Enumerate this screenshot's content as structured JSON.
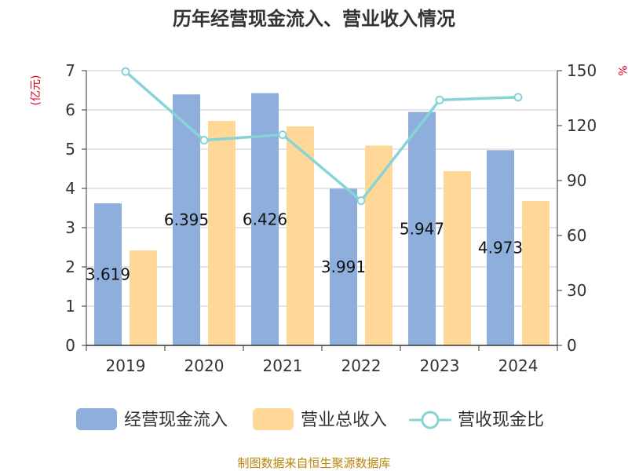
{
  "chart_data": {
    "type": "bar",
    "title": "历年经营现金流入、营业收入情况",
    "categories": [
      "2019",
      "2020",
      "2021",
      "2022",
      "2023",
      "2024"
    ],
    "series": [
      {
        "name": "经营现金流入",
        "kind": "bar",
        "axis": "left",
        "color": "#8eaedb",
        "values": [
          3.619,
          6.395,
          6.426,
          3.991,
          5.947,
          4.973
        ]
      },
      {
        "name": "营业总收入",
        "kind": "bar",
        "axis": "left",
        "color": "#ffd796",
        "values": [
          2.42,
          5.72,
          5.58,
          5.09,
          4.44,
          3.68
        ]
      },
      {
        "name": "营收现金比",
        "kind": "line",
        "axis": "right",
        "color": "#88d3d6",
        "values": [
          149.5,
          112,
          115,
          79,
          134,
          135.5
        ]
      }
    ],
    "data_labels": [
      "3.619",
      "6.395",
      "6.426",
      "3.991",
      "5.947",
      "4.973"
    ],
    "y_left": {
      "unit": "(亿元)",
      "min": 0,
      "max": 7,
      "ticks": [
        "0",
        "1",
        "2",
        "3",
        "4",
        "5",
        "6",
        "7"
      ]
    },
    "y_right": {
      "unit": "%",
      "min": 0,
      "max": 150,
      "ticks": [
        "0",
        "30",
        "60",
        "90",
        "120",
        "150"
      ]
    },
    "grid": true,
    "legend": "bottom"
  },
  "source": "制图数据来自恒生聚源数据库"
}
